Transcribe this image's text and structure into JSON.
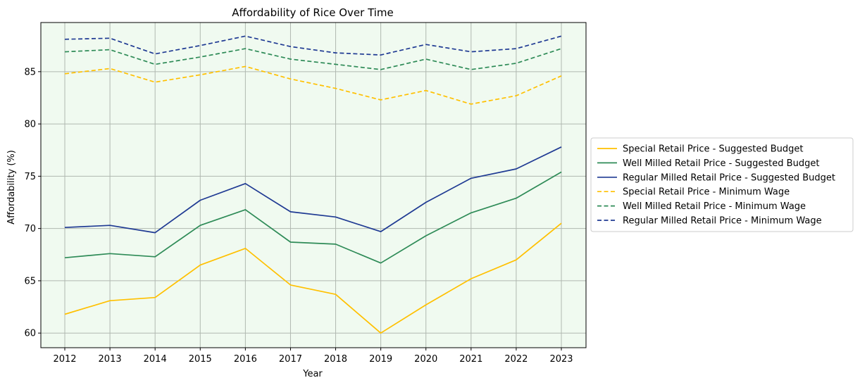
{
  "chart_data": {
    "type": "line",
    "title": "Affordability of Rice Over Time",
    "xlabel": "Year",
    "ylabel": "Affordability (%)",
    "x": [
      "2012",
      "2013",
      "2014",
      "2015",
      "2016",
      "2017",
      "2018",
      "2019",
      "2020",
      "2021",
      "2022",
      "2023"
    ],
    "ylim": [
      58.6,
      89.7
    ],
    "yticks": [
      60,
      65,
      70,
      75,
      80,
      85
    ],
    "grid": true,
    "legend_placement": "center-right outside",
    "plot_background": "#f0faf0",
    "grid_color": "#b0b8b0",
    "series": [
      {
        "name": "Special Retail Price - Suggested Budget",
        "color": "#ffc000",
        "style": "solid",
        "values": [
          61.8,
          63.1,
          63.4,
          66.5,
          68.1,
          64.6,
          63.7,
          60.0,
          62.7,
          65.2,
          67.0,
          70.5
        ]
      },
      {
        "name": "Well Milled Retail Price - Suggested Budget",
        "color": "#2e8b57",
        "style": "solid",
        "values": [
          67.2,
          67.6,
          67.3,
          70.3,
          71.8,
          68.7,
          68.5,
          66.7,
          69.3,
          71.5,
          72.9,
          75.4
        ]
      },
      {
        "name": "Regular Milled Retail Price - Suggested Budget",
        "color": "#1f3a93",
        "style": "solid",
        "values": [
          70.1,
          70.3,
          69.6,
          72.7,
          74.3,
          71.6,
          71.1,
          69.7,
          72.5,
          74.8,
          75.7,
          77.8
        ]
      },
      {
        "name": "Special Retail Price - Minimum Wage",
        "color": "#ffc000",
        "style": "dashed",
        "values": [
          84.8,
          85.3,
          84.0,
          84.7,
          85.5,
          84.3,
          83.4,
          82.3,
          83.2,
          81.9,
          82.7,
          84.6
        ]
      },
      {
        "name": "Well Milled Retail Price - Minimum Wage",
        "color": "#2e8b57",
        "style": "dashed",
        "values": [
          86.9,
          87.1,
          85.7,
          86.4,
          87.2,
          86.2,
          85.7,
          85.2,
          86.2,
          85.2,
          85.8,
          87.2
        ]
      },
      {
        "name": "Regular Milled Retail Price - Minimum Wage",
        "color": "#1f3a93",
        "style": "dashed",
        "values": [
          88.1,
          88.2,
          86.7,
          87.5,
          88.4,
          87.4,
          86.8,
          86.6,
          87.6,
          86.9,
          87.2,
          88.4
        ]
      }
    ]
  }
}
